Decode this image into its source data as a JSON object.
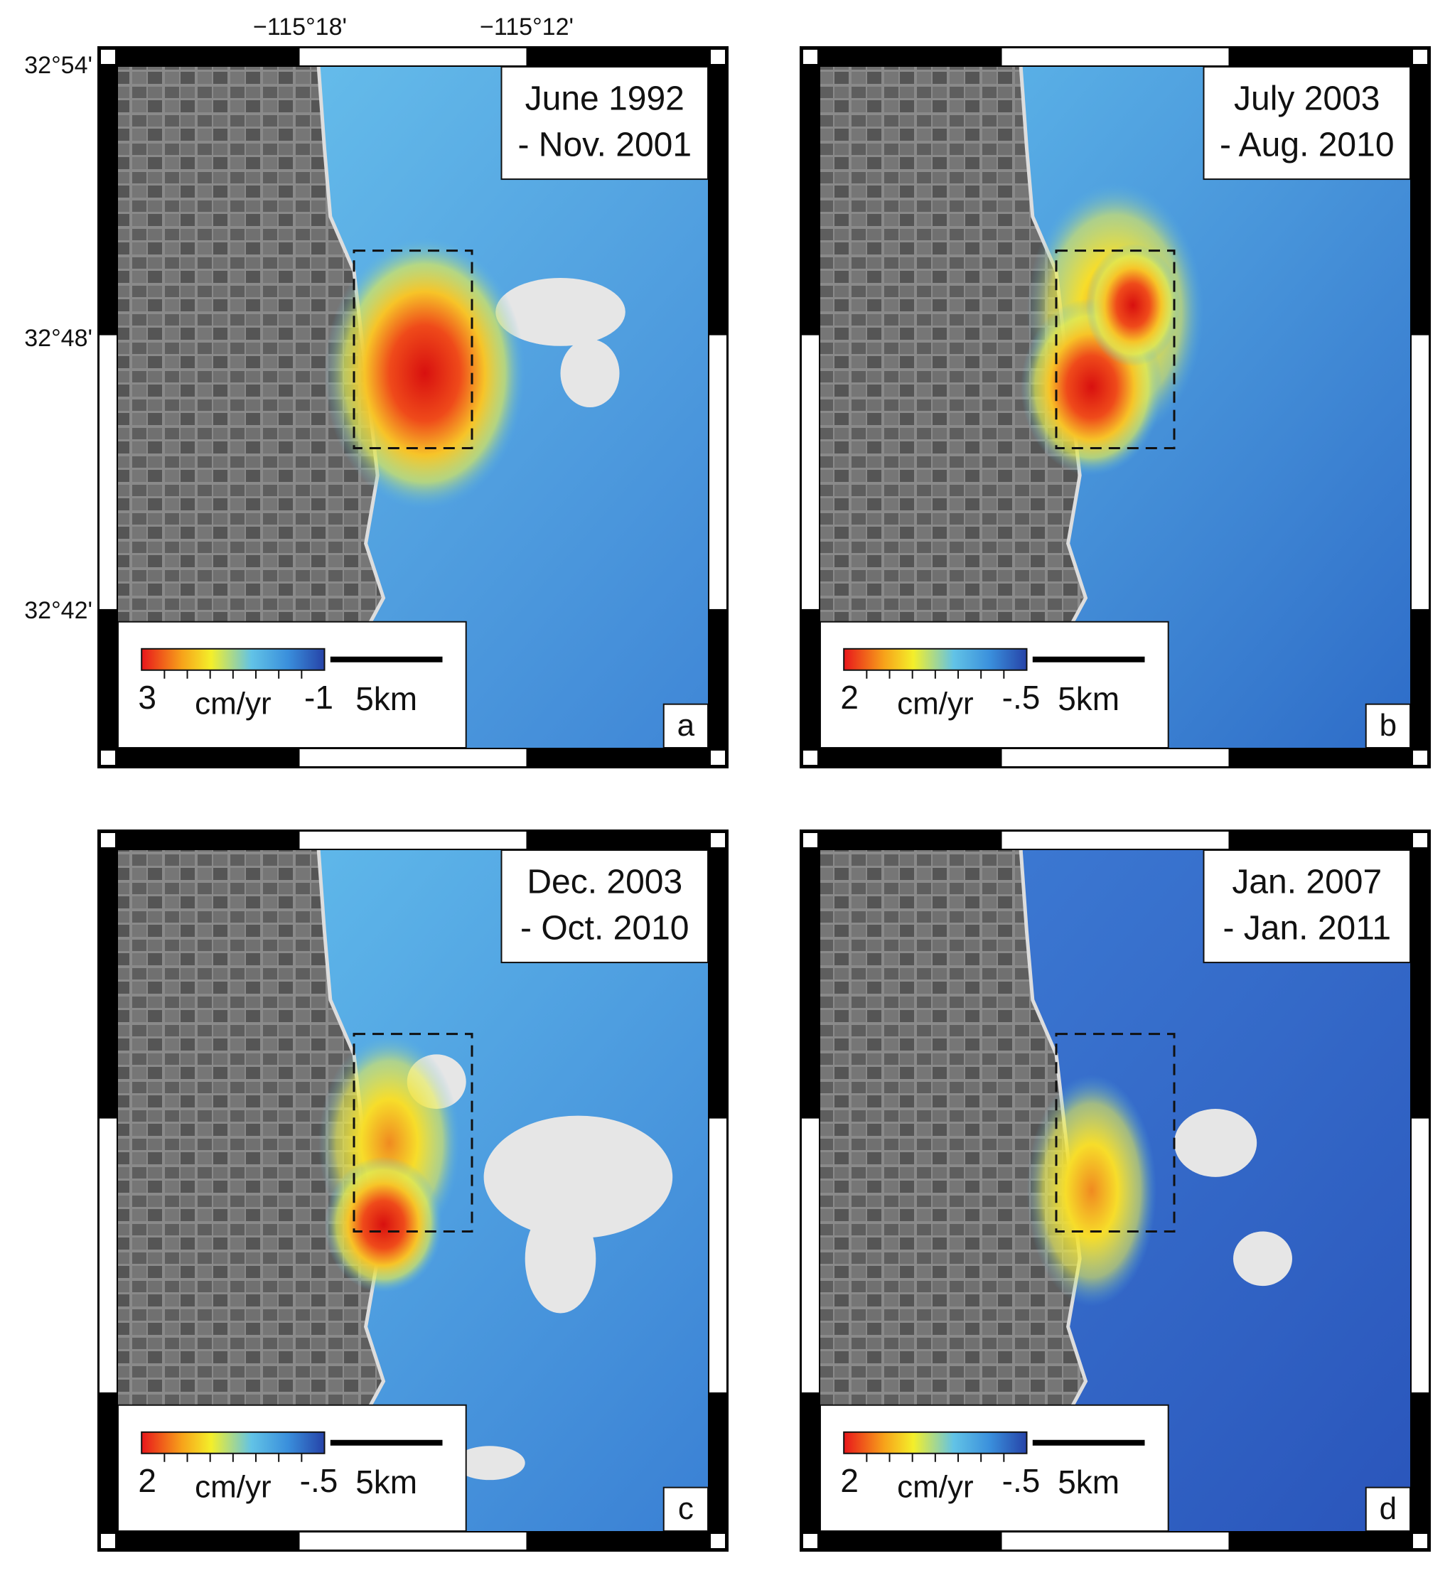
{
  "axes": {
    "x_labels": [
      "−115°18'",
      "−115°12'"
    ],
    "y_labels": [
      "32°54'",
      "32°48'",
      "32°42'"
    ]
  },
  "panels": [
    {
      "letter": "a",
      "period": [
        "June 1992",
        "- Nov. 2001"
      ],
      "colorbar": {
        "min": "3",
        "unit": "cm/yr",
        "max": "-1"
      },
      "scale_bar": "5km"
    },
    {
      "letter": "b",
      "period": [
        "July 2003",
        "- Aug. 2010"
      ],
      "colorbar": {
        "min": "2",
        "unit": "cm/yr",
        "max": "-.5"
      },
      "scale_bar": "5km"
    },
    {
      "letter": "c",
      "period": [
        "Dec. 2003",
        "- Oct. 2010"
      ],
      "colorbar": {
        "min": "2",
        "unit": "cm/yr",
        "max": "-.5"
      },
      "scale_bar": "5km"
    },
    {
      "letter": "d",
      "period": [
        "Jan. 2007",
        "- Jan. 2011"
      ],
      "colorbar": {
        "min": "2",
        "unit": "cm/yr",
        "max": "-.5"
      },
      "scale_bar": "5km"
    }
  ]
}
